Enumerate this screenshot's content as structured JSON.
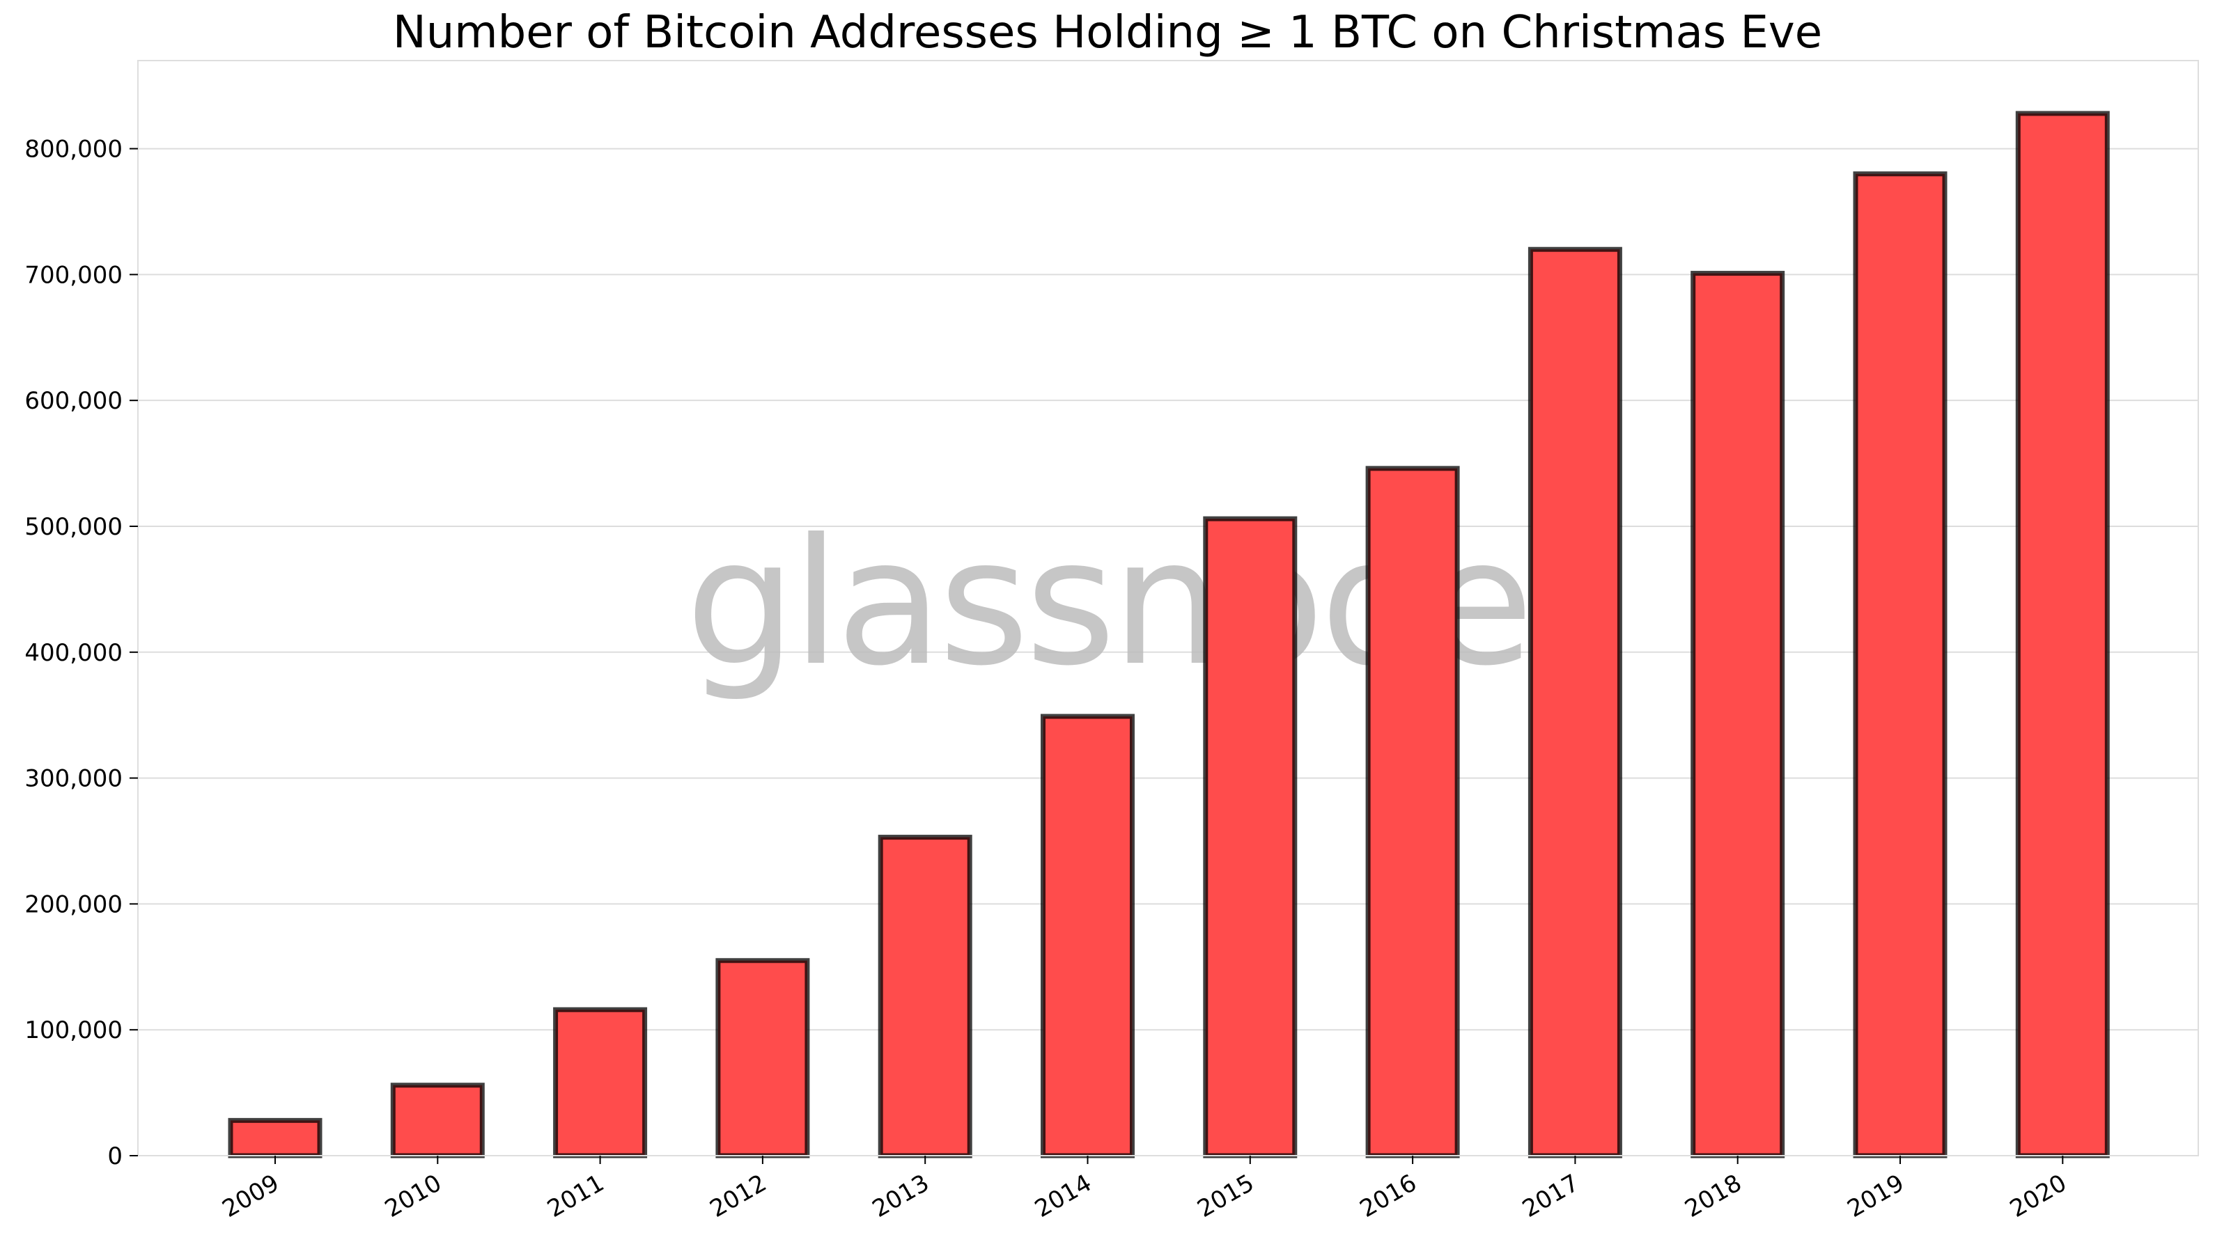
{
  "chart_data": {
    "type": "bar",
    "title": "Number of Bitcoin Addresses Holding ≥ 1 BTC on Christmas Eve",
    "xlabel": "",
    "ylabel": "",
    "categories": [
      "2009",
      "2010",
      "2011",
      "2012",
      "2013",
      "2014",
      "2015",
      "2016",
      "2017",
      "2018",
      "2019",
      "2020"
    ],
    "values": [
      28000,
      56000,
      116000,
      155000,
      253000,
      349000,
      506000,
      546000,
      720000,
      701000,
      780000,
      828000
    ],
    "ylim": [
      0,
      870000
    ],
    "yticks": [
      0,
      100000,
      200000,
      300000,
      400000,
      500000,
      600000,
      700000,
      800000
    ],
    "ytick_labels": [
      "0",
      "100,000",
      "200,000",
      "300,000",
      "400,000",
      "500,000",
      "600,000",
      "700,000",
      "800,000"
    ],
    "grid": true,
    "legend": null,
    "colors": {
      "bar_fill": "#ff4c4c",
      "bar_edge": "#000000",
      "grid": "#dddddd",
      "watermark": "#bdbdbd"
    }
  },
  "watermark": {
    "text": "glassnode"
  }
}
